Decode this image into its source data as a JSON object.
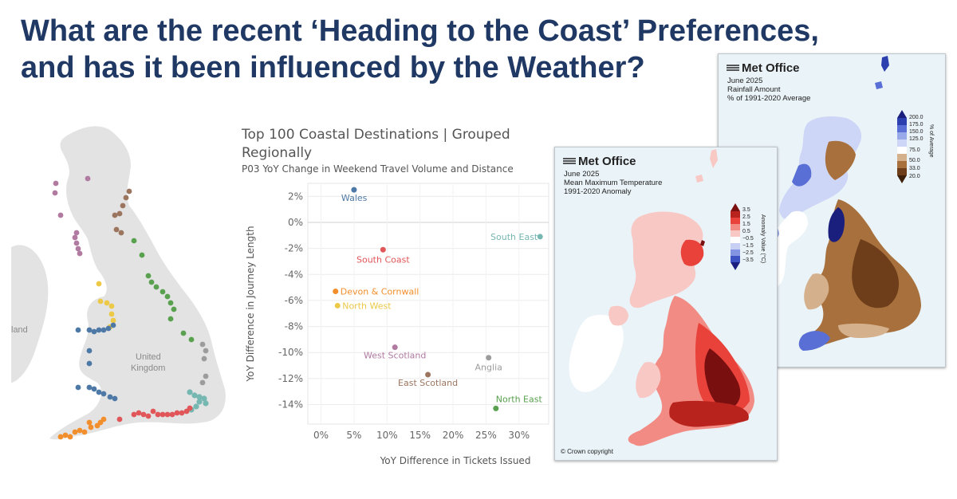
{
  "page": {
    "title": "What are the recent ‘Heading to the Coast’ Preferences, and has it been influenced by the Weather?"
  },
  "left_map": {
    "labels": [
      "United",
      "Kingdom",
      "land"
    ]
  },
  "chart_data": {
    "type": "scatter",
    "title": "Top 100 Coastal Destinations | Grouped Regionally",
    "subtitle": "P03 YoY Change in Weekend Travel Volume and Distance",
    "xlabel": "YoY Difference in Tickets Issued",
    "ylabel": "YoY Difference in Journey Length",
    "xlim": [
      -0.02,
      0.345
    ],
    "ylim": [
      -0.155,
      0.03
    ],
    "xticks": [
      0,
      0.05,
      0.1,
      0.15,
      0.2,
      0.25,
      0.3
    ],
    "xticklabels": [
      "0%",
      "5%",
      "10%",
      "15%",
      "20%",
      "25%",
      "30%"
    ],
    "yticks": [
      0.02,
      0,
      -0.02,
      -0.04,
      -0.06,
      -0.08,
      -0.1,
      -0.12,
      -0.14
    ],
    "yticklabels": [
      "2%",
      "0%",
      "-2%",
      "-4%",
      "-6%",
      "-8%",
      "-10%",
      "-12%",
      "-14%"
    ],
    "grid": true,
    "points": [
      {
        "label": "Wales",
        "x": 0.05,
        "y": 0.025,
        "color": "#4e79a7"
      },
      {
        "label": "South East",
        "x": 0.332,
        "y": -0.011,
        "color": "#76b7b2"
      },
      {
        "label": "South Coast",
        "x": 0.094,
        "y": -0.021,
        "color": "#e15759"
      },
      {
        "label": "Devon & Cornwall",
        "x": 0.022,
        "y": -0.053,
        "color": "#f28e2b"
      },
      {
        "label": "North West",
        "x": 0.025,
        "y": -0.064,
        "color": "#edc948"
      },
      {
        "label": "West Scotland",
        "x": 0.112,
        "y": -0.096,
        "color": "#b07aa1"
      },
      {
        "label": "Anglia",
        "x": 0.254,
        "y": -0.104,
        "color": "#9c9c9c"
      },
      {
        "label": "East Scotland",
        "x": 0.162,
        "y": -0.117,
        "color": "#9c755f"
      },
      {
        "label": "North East",
        "x": 0.265,
        "y": -0.143,
        "color": "#59a14f"
      }
    ]
  },
  "met_temp": {
    "logo": "Met Office",
    "lines": [
      "June 2025",
      "Mean Maximum Temperature",
      "1991-2020 Anomaly"
    ],
    "colorbar_labels": [
      "3.5",
      "2.5",
      "1.5",
      "0.5",
      "−0.5",
      "−1.5",
      "−2.5",
      "−3.5"
    ],
    "colorbar_title": "Anomaly Value (°C)",
    "copyright": "© Crown copyright"
  },
  "met_rain": {
    "logo": "Met Office",
    "lines": [
      "June 2025",
      "Rainfall Amount",
      "% of 1991-2020 Average"
    ],
    "colorbar_labels": [
      "200.0",
      "175.0",
      "150.0",
      "125.0",
      "75.0",
      "50.0",
      "33.0",
      "20.0"
    ],
    "colorbar_title": "% of Average"
  },
  "colors": {
    "title": "#1f3864",
    "warm_dark": "#7a0f0f",
    "warm_mid": "#e8423a",
    "warm_light": "#f5b5b0",
    "rain_brown": "#9c6232",
    "rain_blue": "#2b3fae"
  }
}
